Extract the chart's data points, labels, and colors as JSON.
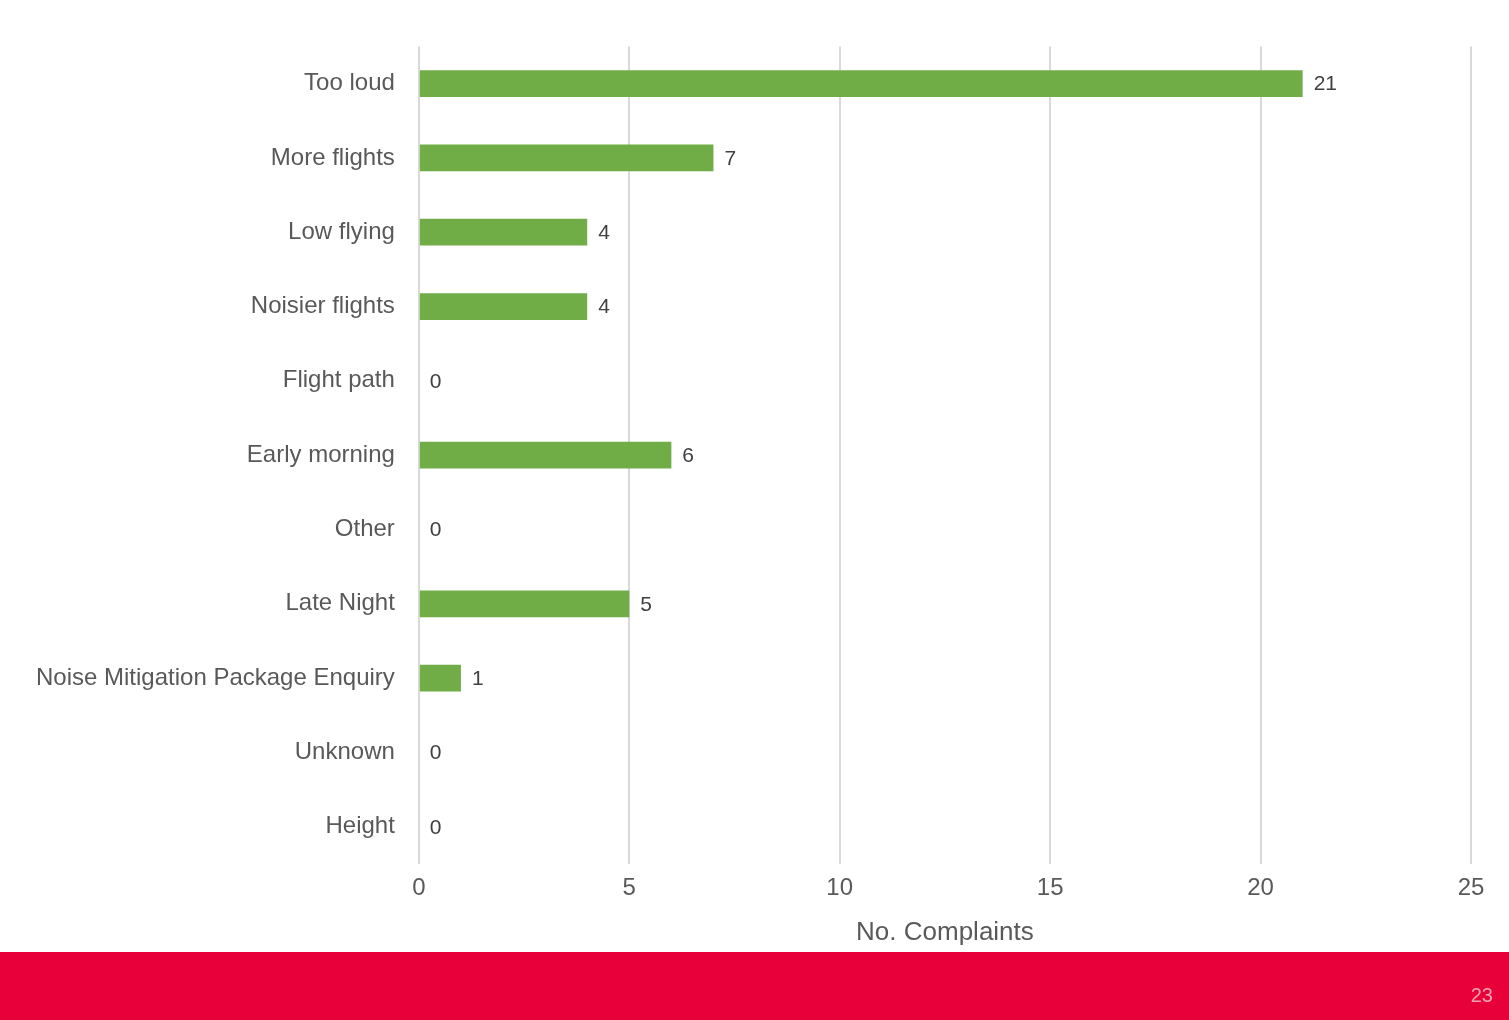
{
  "chart_data": {
    "type": "bar",
    "orientation": "horizontal",
    "categories": [
      "Too loud",
      "More flights",
      "Low flying",
      "Noisier flights",
      "Flight path",
      "Early morning",
      "Other",
      "Late Night",
      "Noise Mitigation Package Enquiry",
      "Unknown",
      "Height"
    ],
    "values": [
      21,
      7,
      4,
      4,
      0,
      6,
      0,
      5,
      1,
      0,
      0
    ],
    "color": "#70ad47",
    "data_labels": true,
    "xlabel": "No. Complaints",
    "xlim": [
      0,
      25
    ],
    "xticks": [
      0,
      5,
      10,
      15,
      20,
      25
    ],
    "grid": "x",
    "legend": false,
    "annotations": [
      "23"
    ]
  }
}
